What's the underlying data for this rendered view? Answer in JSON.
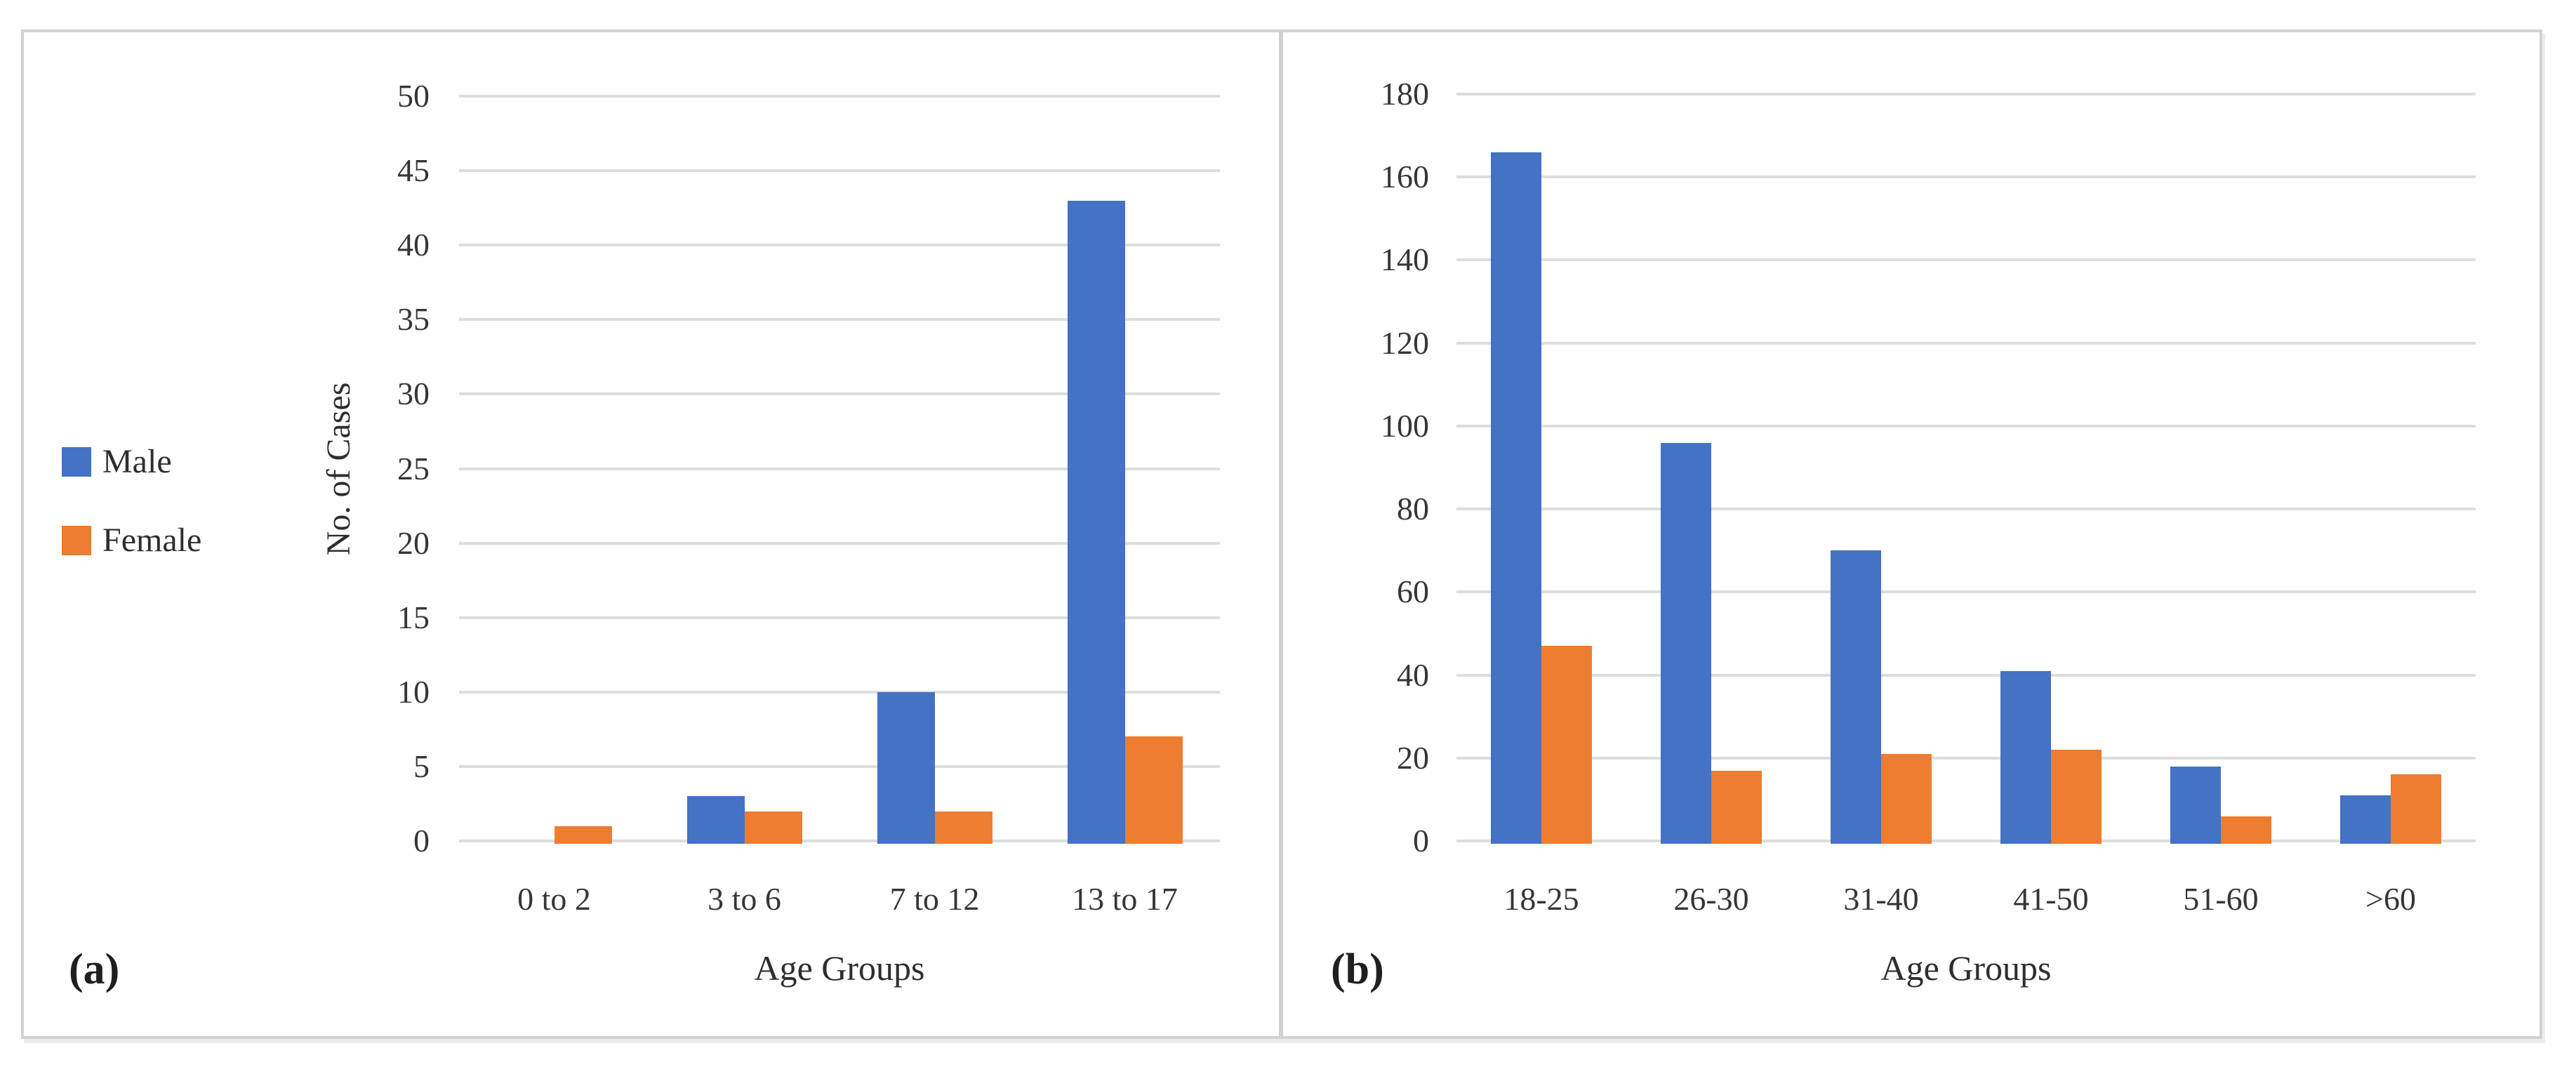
{
  "figure": {
    "panels": [
      {
        "label": "(a)"
      },
      {
        "label": "(b)"
      }
    ],
    "legend": {
      "items": [
        {
          "label": "Male",
          "color": "#4472C4"
        },
        {
          "label": "Female",
          "color": "#ED7D31"
        }
      ]
    },
    "colors": {
      "male": "#4472C4",
      "female": "#ED7D31",
      "gridline": "#dddddd",
      "border": "#d1d1d1",
      "text": "#333333"
    }
  },
  "chart_data": [
    {
      "id": "a",
      "type": "bar",
      "panel_label": "(a)",
      "categories": [
        "0 to 2",
        "3 to 6",
        "7 to 12",
        "13 to 17"
      ],
      "series": [
        {
          "name": "Male",
          "color": "#4472C4",
          "values": [
            0,
            3,
            10,
            43
          ]
        },
        {
          "name": "Female",
          "color": "#ED7D31",
          "values": [
            1,
            2,
            2,
            7
          ]
        }
      ],
      "title": "",
      "xlabel": "Age Groups",
      "ylabel": "No. of Cases",
      "ylim": [
        0,
        50
      ],
      "ytick_step": 5,
      "grid": true,
      "legend_position": "left"
    },
    {
      "id": "b",
      "type": "bar",
      "panel_label": "(b)",
      "categories": [
        "18-25",
        "26-30",
        "31-40",
        "41-50",
        "51-60",
        ">60"
      ],
      "series": [
        {
          "name": "Male",
          "color": "#4472C4",
          "values": [
            166,
            96,
            70,
            41,
            18,
            11
          ]
        },
        {
          "name": "Female",
          "color": "#ED7D31",
          "values": [
            47,
            17,
            21,
            22,
            6,
            16
          ]
        }
      ],
      "title": "",
      "xlabel": "Age Groups",
      "ylabel": "",
      "ylim": [
        0,
        180
      ],
      "ytick_step": 20,
      "grid": true,
      "legend_position": "none"
    }
  ]
}
